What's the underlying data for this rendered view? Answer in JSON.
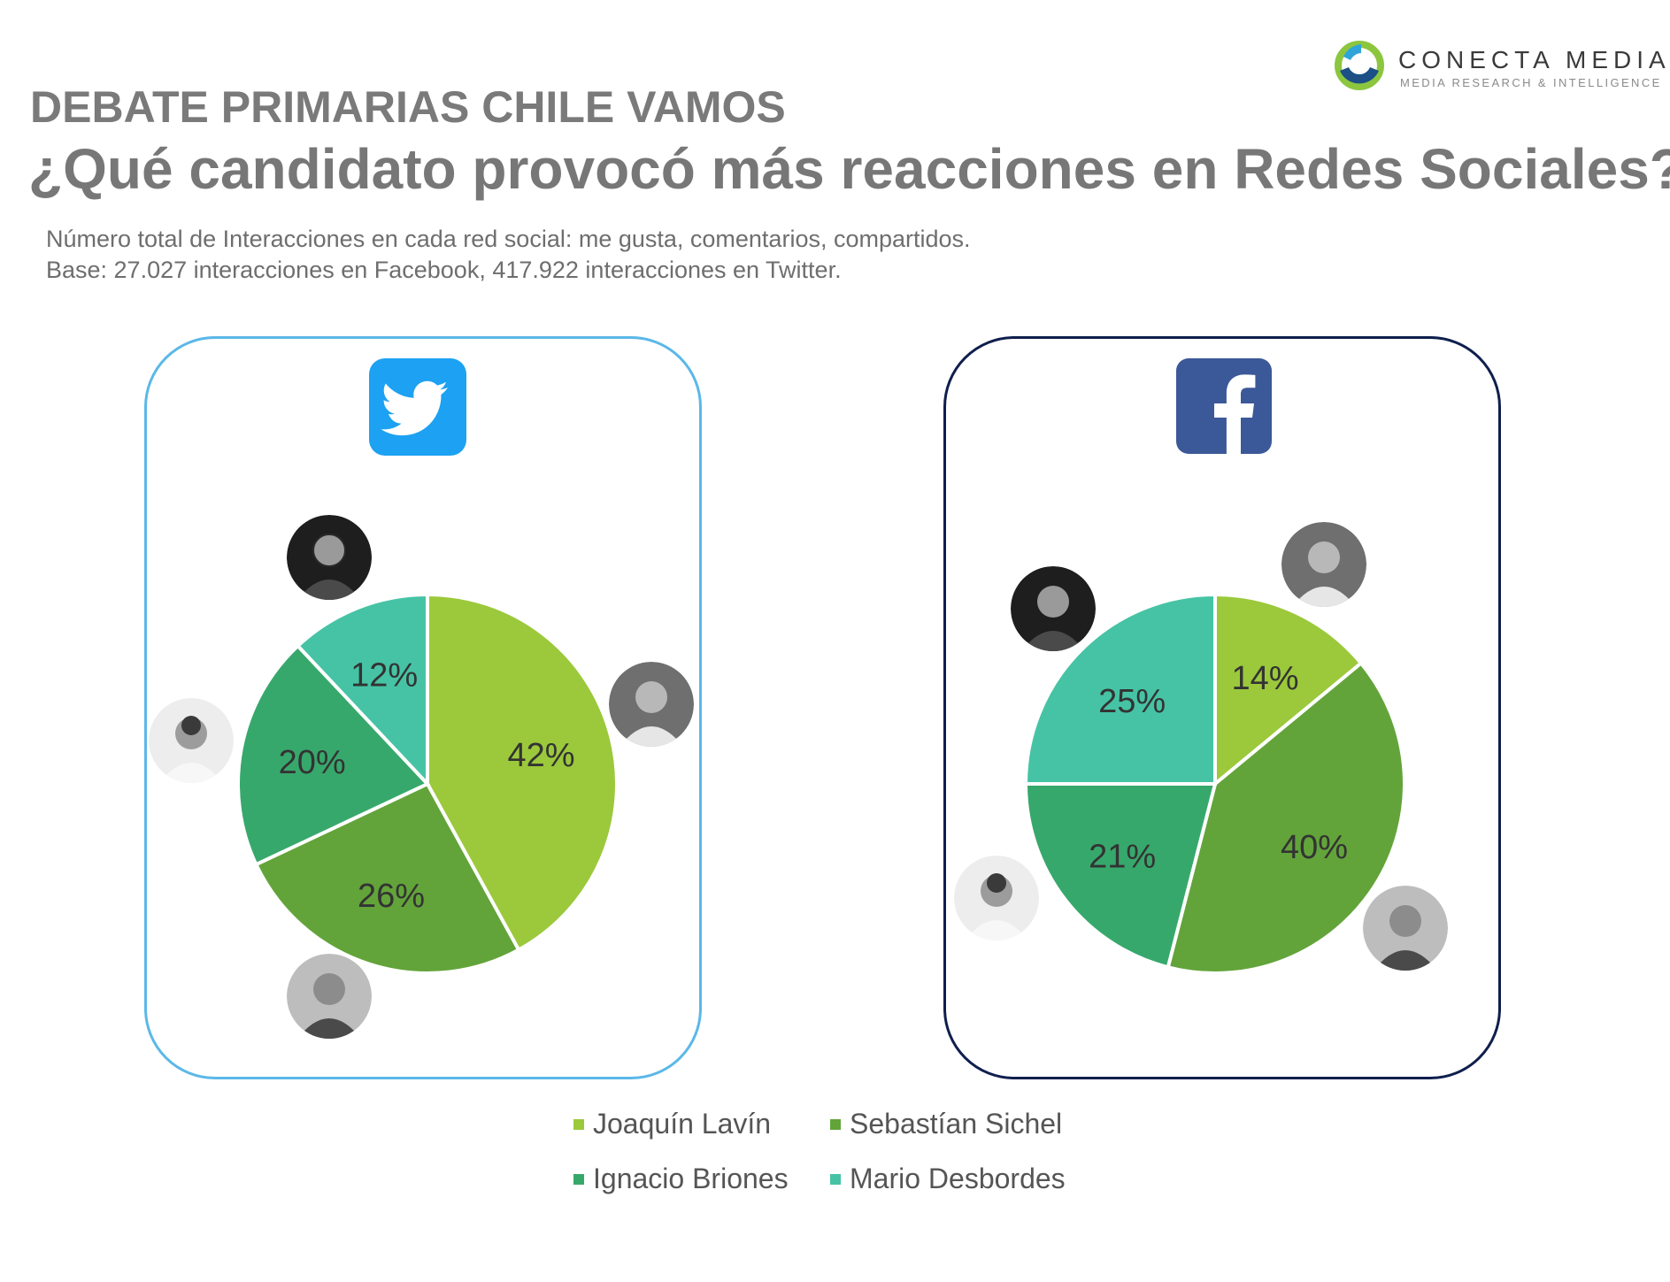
{
  "brand": {
    "name": "CONECTA MEDIA",
    "tagline": "MEDIA RESEARCH & INTELLIGENCE"
  },
  "header": {
    "kicker": "DEBATE PRIMARIAS CHILE VAMOS",
    "title": "¿Qué candidato provocó más reacciones en Redes Sociales?",
    "note1": "Número total de Interacciones en cada red social: me gusta, comentarios, compartidos.",
    "note2": "Base: 27.027 interacciones en Facebook, 417.922 interacciones en Twitter."
  },
  "colors": {
    "twitter_border": "#5bb8e8",
    "facebook_border": "#0f1f4d",
    "twitter_blue": "#1da1f2",
    "facebook_blue": "#3b5998"
  },
  "icons": {
    "twitter": "twitter-bird-icon",
    "facebook": "facebook-f-icon",
    "logo": "conecta-media-logo-icon"
  },
  "chart_data": [
    {
      "type": "pie",
      "network": "twitter",
      "categories": [
        "Joaquín Lavín",
        "Sebastían Sichel",
        "Ignacio Briones",
        "Mario Desbordes"
      ],
      "values": [
        42,
        26,
        20,
        12
      ],
      "labels": [
        "42%",
        "26%",
        "20%",
        "12%"
      ],
      "colors": [
        "#9bc93b",
        "#62a43a",
        "#37a86c",
        "#46c3a5"
      ]
    },
    {
      "type": "pie",
      "network": "facebook",
      "categories": [
        "Joaquín Lavín",
        "Sebastían Sichel",
        "Ignacio Briones",
        "Mario Desbordes"
      ],
      "values": [
        14,
        40,
        21,
        25
      ],
      "labels": [
        "14%",
        "40%",
        "21%",
        "25%"
      ],
      "colors": [
        "#9bc93b",
        "#62a43a",
        "#37a86c",
        "#46c3a5"
      ]
    }
  ],
  "legend": [
    {
      "label": "Joaquín Lavín",
      "color": "#9bc93b"
    },
    {
      "label": "Sebastían Sichel",
      "color": "#62a43a"
    },
    {
      "label": "Ignacio Briones",
      "color": "#37a86c"
    },
    {
      "label": "Mario Desbordes",
      "color": "#46c3a5"
    }
  ]
}
